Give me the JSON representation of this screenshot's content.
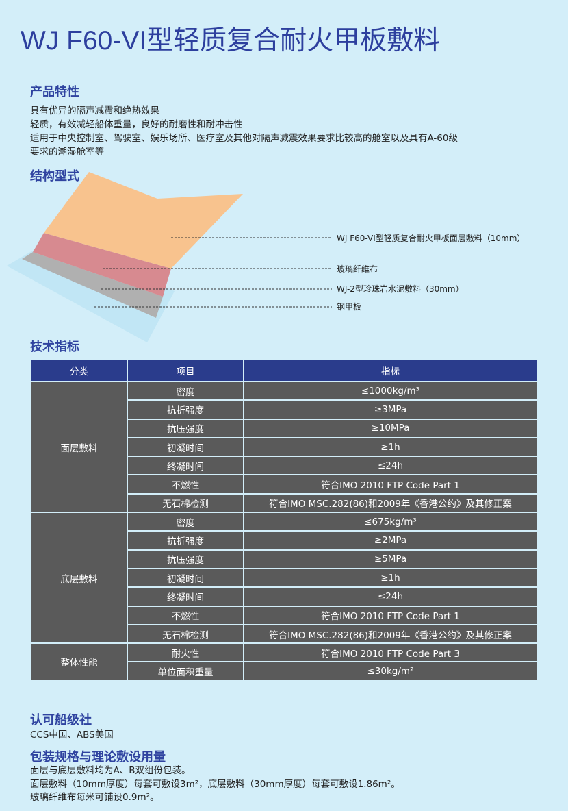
{
  "title": "WJ F60-VI型轻质复合耐火甲板敷料",
  "features": {
    "heading": "产品特性",
    "lines": [
      "具有优异的隔声减震和绝热效果",
      "轻质，有效减轻船体重量，良好的耐磨性和耐冲击性",
      "适用于中央控制室、驾驶室、娱乐场所、医疗室及其他对隔声减震效果要求比较高的舱室以及具有A-60级",
      "要求的潮湿舱室等"
    ]
  },
  "structure": {
    "heading": "结构型式",
    "layers": [
      "WJ F60-VI型轻质复合耐火甲板面层敷料（10mm）",
      "玻璃纤维布",
      "WJ-2型珍珠岩水泥敷料（30mm）",
      "钢甲板"
    ],
    "colors": {
      "top": "#f8c38e",
      "mesh": "#c8485a",
      "cement": "#b0b0b0",
      "steel": "#bfe4f4"
    }
  },
  "specs": {
    "heading": "技术指标",
    "columns": [
      "分类",
      "项目",
      "指标"
    ],
    "groups": [
      {
        "category": "面层敷料",
        "rows": [
          [
            "密度",
            "≤1000kg/m³"
          ],
          [
            "抗折强度",
            "≥3MPa"
          ],
          [
            "抗压强度",
            "≥10MPa"
          ],
          [
            "初凝时间",
            "≥1h"
          ],
          [
            "终凝时间",
            "≤24h"
          ],
          [
            "不燃性",
            "符合IMO 2010 FTP Code Part 1"
          ],
          [
            "无石棉检测",
            "符合IMO MSC.282(86)和2009年《香港公约》及其修正案"
          ]
        ]
      },
      {
        "category": "底层敷料",
        "rows": [
          [
            "密度",
            "≤675kg/m³"
          ],
          [
            "抗折强度",
            "≥2MPa"
          ],
          [
            "抗压强度",
            "≥5MPa"
          ],
          [
            "初凝时间",
            "≥1h"
          ],
          [
            "终凝时间",
            "≤24h"
          ],
          [
            "不燃性",
            "符合IMO 2010 FTP Code Part 1"
          ],
          [
            "无石棉检测",
            "符合IMO MSC.282(86)和2009年《香港公约》及其修正案"
          ]
        ]
      },
      {
        "category": "整体性能",
        "rows": [
          [
            "耐火性",
            "符合IMO 2010 FTP Code Part 3"
          ],
          [
            "单位面积重量",
            "≤30kg/m²"
          ]
        ]
      }
    ]
  },
  "classification": {
    "heading": "认可船级社",
    "text": "CCS中国、ABS美国"
  },
  "packaging": {
    "heading": "包装规格与理论敷设用量",
    "lines": [
      "面层与底层敷料均为A、B双组份包装。",
      "面层敷料（10mm厚度）每套可敷设3m²，底层敷料（30mm厚度）每套可敷设1.86m²。",
      "玻璃纤维布每米可铺设0.9m²。"
    ]
  }
}
